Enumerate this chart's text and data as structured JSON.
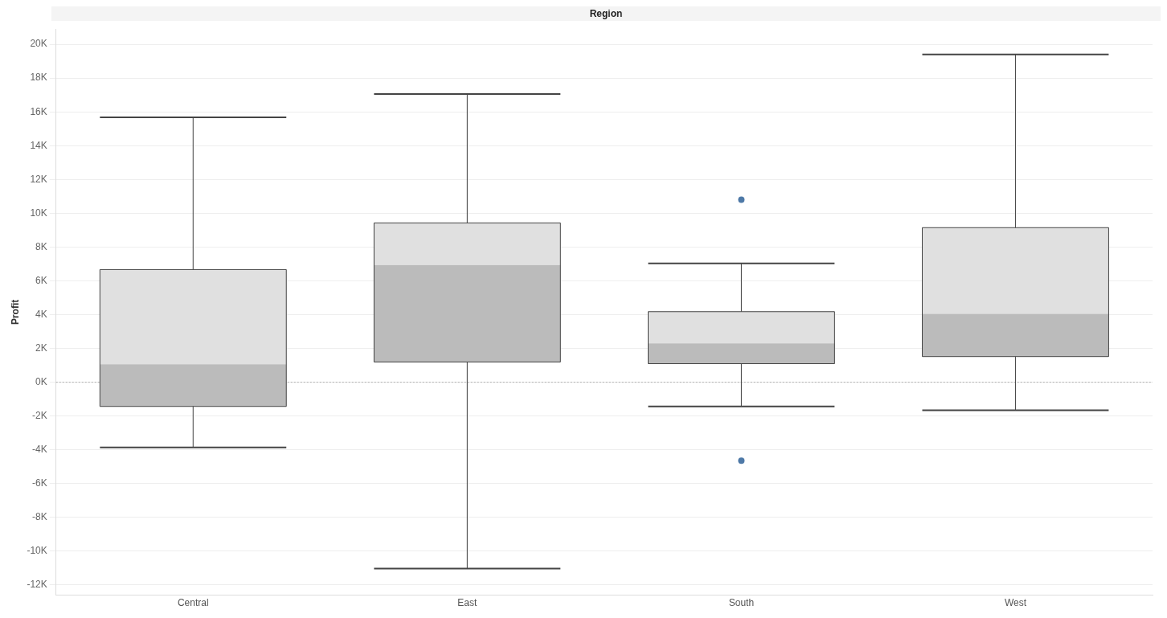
{
  "chart_data": {
    "type": "box",
    "xlabel": "Region",
    "ylabel": "Profit",
    "categories": [
      "Central",
      "East",
      "South",
      "West"
    ],
    "boxes": [
      {
        "low": -3860,
        "q1": -1430,
        "median": 1060,
        "q3": 6670,
        "high": 15680
      },
      {
        "low": -11030,
        "q1": 1200,
        "median": 6940,
        "q3": 9430,
        "high": 17060
      },
      {
        "low": -1430,
        "q1": 1100,
        "median": 2300,
        "q3": 4180,
        "high": 7030,
        "outliers": [
          10800,
          -4640
        ]
      },
      {
        "low": -1660,
        "q1": 1520,
        "median": 4050,
        "q3": 9150,
        "high": 19400
      }
    ],
    "ylim": [
      -12600,
      20900
    ],
    "yticks": [
      {
        "value": -12000,
        "label": "-12K"
      },
      {
        "value": -10000,
        "label": "-10K"
      },
      {
        "value": -8000,
        "label": "-8K"
      },
      {
        "value": -6000,
        "label": "-6K"
      },
      {
        "value": -4000,
        "label": "-4K"
      },
      {
        "value": -2000,
        "label": "-2K"
      },
      {
        "value": 0,
        "label": "0K"
      },
      {
        "value": 2000,
        "label": "2K"
      },
      {
        "value": 4000,
        "label": "4K"
      },
      {
        "value": 6000,
        "label": "6K"
      },
      {
        "value": 8000,
        "label": "8K"
      },
      {
        "value": 10000,
        "label": "10K"
      },
      {
        "value": 12000,
        "label": "12K"
      },
      {
        "value": 14000,
        "label": "14K"
      },
      {
        "value": 16000,
        "label": "16K"
      },
      {
        "value": 18000,
        "label": "18K"
      },
      {
        "value": 20000,
        "label": "20K"
      }
    ],
    "ref_lines": [
      {
        "axis": "y",
        "value": 0,
        "color": "#aaaaaa",
        "line_style": "dotted"
      }
    ],
    "grid": "y",
    "legend": false
  }
}
